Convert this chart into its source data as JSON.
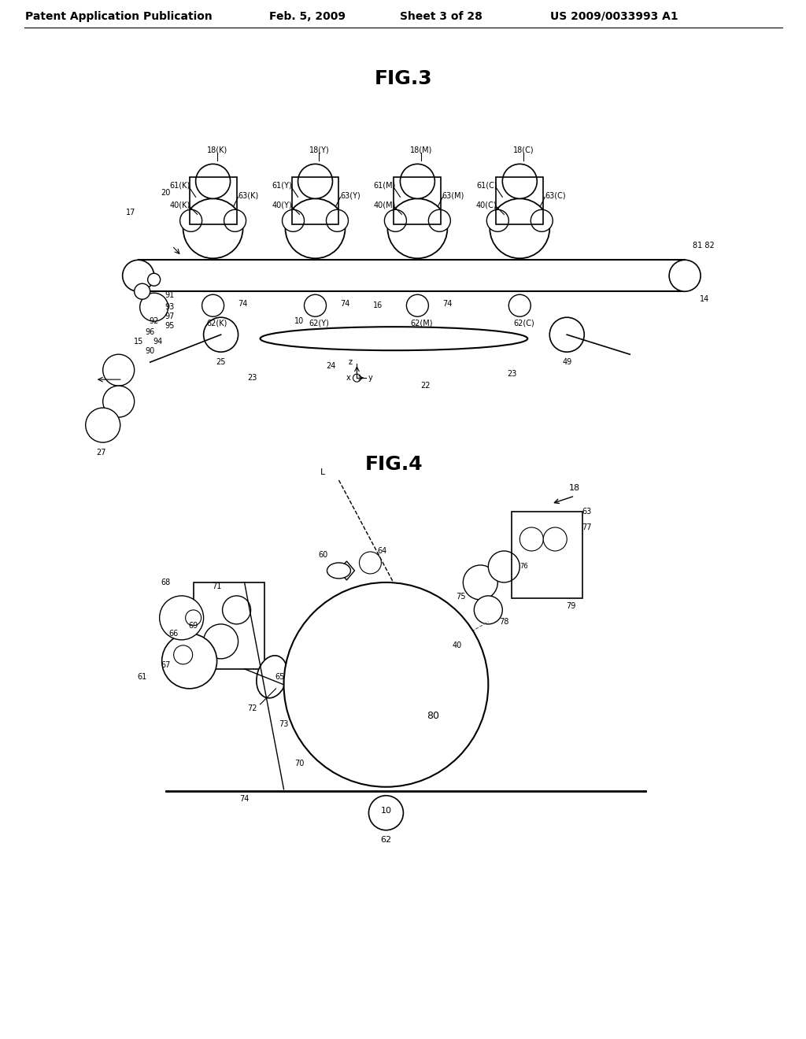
{
  "bg_color": "#ffffff",
  "header_text": "Patent Application Publication",
  "header_date": "Feb. 5, 2009",
  "header_sheet": "Sheet 3 of 28",
  "header_patent": "US 2009/0033993 A1",
  "fig3_title": "FIG.3",
  "fig4_title": "FIG.4",
  "line_color": "#000000",
  "line_width": 1.2,
  "font_size_header": 10,
  "font_size_fig": 16,
  "font_size_label": 7
}
